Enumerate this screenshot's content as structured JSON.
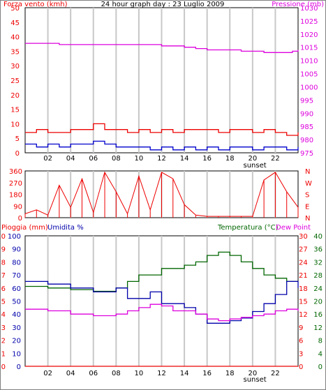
{
  "colors": {
    "wind": "#ee0000",
    "wind_avg": "#0000cc",
    "wind_green": "#008000",
    "pressure": "#dd00dd",
    "grid": "#c8c8c8",
    "temperature": "#006600",
    "dewpoint": "#dd00dd",
    "humidity": "#0000aa",
    "rain": "#ee0000"
  },
  "chart_data": [
    {
      "type": "line",
      "title": "24 hour graph day : 23 Luglio 2009",
      "left_label": "Forza vento (kmh)",
      "right_label": "Pressione (mb)",
      "x_ticks": [
        "02",
        "04",
        "06",
        "08",
        "10",
        "12",
        "14",
        "16",
        "18",
        "20",
        "22"
      ],
      "x_note": "sunset",
      "y_left_ticks": [
        0,
        5,
        10,
        15,
        20,
        25,
        30,
        35,
        40,
        45,
        50
      ],
      "y_right_ticks": [
        975,
        980,
        985,
        990,
        995,
        1000,
        1005,
        1010,
        1015,
        1020,
        1025,
        1030
      ],
      "ylim_left": [
        0,
        50
      ],
      "ylim_right": [
        975,
        1030
      ],
      "series": [
        {
          "role": "pressure",
          "axis": "right",
          "x": [
            0,
            2,
            3,
            4,
            6,
            8,
            10,
            12,
            14,
            15,
            16,
            18,
            19,
            20,
            21,
            22,
            23,
            23.5,
            24
          ],
          "values": [
            1016.5,
            1016.5,
            1016,
            1016,
            1016,
            1016,
            1016,
            1015.5,
            1015,
            1014.5,
            1014,
            1014,
            1013.5,
            1013.5,
            1013,
            1013,
            1013,
            1013.5,
            1014
          ]
        },
        {
          "role": "wind_avg",
          "axis": "left",
          "x": [
            0,
            1,
            2,
            3,
            4,
            5,
            6,
            7,
            8,
            9,
            10,
            11,
            12,
            13,
            14,
            15,
            16,
            17,
            18,
            19,
            20,
            21,
            22,
            23,
            24
          ],
          "values": [
            3,
            2,
            3,
            2,
            3,
            3,
            4,
            3,
            2,
            2,
            2,
            1,
            2,
            1,
            2,
            1,
            2,
            1,
            2,
            2,
            1,
            2,
            2,
            1,
            2
          ]
        },
        {
          "role": "wind_gust",
          "axis": "left",
          "x": [
            0,
            1,
            2,
            3,
            4,
            5,
            6,
            7,
            8,
            9,
            10,
            11,
            12,
            13,
            14,
            15,
            16,
            17,
            18,
            19,
            20,
            21,
            22,
            23,
            24
          ],
          "values": [
            7,
            8,
            7,
            7,
            8,
            8,
            10,
            8,
            8,
            7,
            8,
            7,
            8,
            7,
            8,
            8,
            8,
            7,
            8,
            8,
            7,
            8,
            7,
            6,
            7
          ]
        }
      ]
    },
    {
      "type": "scatter",
      "title": "",
      "y_left_ticks": [
        0,
        90,
        180,
        270,
        360
      ],
      "y_right_ticks": [
        "N",
        "E",
        "S",
        "W",
        "N"
      ],
      "ylim": [
        0,
        360
      ],
      "x_ticks": [],
      "series": [
        {
          "role": "wind_direction",
          "x": [
            0,
            1,
            2,
            3,
            4,
            5,
            6,
            7,
            8,
            9,
            10,
            11,
            12,
            13,
            14,
            15,
            16,
            17,
            18,
            19,
            20,
            21,
            22,
            23,
            24
          ],
          "values": [
            30,
            60,
            20,
            250,
            80,
            300,
            40,
            350,
            200,
            30,
            320,
            60,
            350,
            300,
            100,
            20,
            10,
            10,
            10,
            10,
            10,
            290,
            350,
            200,
            80
          ]
        }
      ]
    },
    {
      "type": "line",
      "title": "",
      "left_labels": [
        "Pioggia (mm)",
        "Umidita %"
      ],
      "right_labels": [
        "Temperatura (°C)",
        "Dew Point"
      ],
      "x_ticks": [
        "02",
        "04",
        "06",
        "08",
        "10",
        "12",
        "14",
        "16",
        "18",
        "20",
        "22"
      ],
      "x_note": "sunset",
      "y_left_outer_ticks": [
        0,
        1,
        2,
        3,
        4,
        5,
        6,
        7,
        8,
        9,
        10
      ],
      "y_left_inner_ticks": [
        0,
        10,
        20,
        30,
        40,
        50,
        60,
        70,
        80,
        90,
        100
      ],
      "y_mid_ticks": [
        0,
        3,
        6,
        9,
        12,
        15,
        18,
        21,
        24,
        27,
        30
      ],
      "y_right_ticks": [
        0,
        4,
        8,
        12,
        16,
        20,
        24,
        28,
        32,
        36,
        40
      ],
      "ylim_humidity": [
        0,
        100
      ],
      "ylim_temperature": [
        0,
        40
      ],
      "series": [
        {
          "role": "temperature",
          "axis": "right",
          "x": [
            0,
            2,
            4,
            6,
            7,
            8,
            9,
            10,
            12,
            14,
            15,
            16,
            17,
            18,
            19,
            20,
            21,
            22,
            23,
            24
          ],
          "values": [
            24.5,
            24,
            23.5,
            23,
            23,
            24,
            26,
            28,
            30,
            31,
            32,
            34,
            35,
            34,
            32,
            30,
            28,
            27,
            26,
            26
          ]
        },
        {
          "role": "humidity",
          "axis": "left",
          "x": [
            0,
            2,
            4,
            6,
            7,
            8,
            9,
            10,
            11,
            12,
            13,
            14,
            15,
            16,
            17,
            18,
            19,
            20,
            21,
            22,
            23,
            24
          ],
          "values": [
            65,
            63,
            60,
            57,
            57,
            60,
            52,
            52,
            57,
            48,
            48,
            45,
            40,
            33,
            33,
            35,
            37,
            42,
            48,
            55,
            65,
            60
          ]
        },
        {
          "role": "dewpoint",
          "axis": "right",
          "x": [
            0,
            2,
            4,
            6,
            8,
            9,
            10,
            11,
            12,
            13,
            14,
            15,
            16,
            17,
            18,
            19,
            20,
            21,
            22,
            23,
            24
          ],
          "values": [
            17.5,
            17,
            16,
            15.5,
            16,
            17,
            18,
            19,
            18.5,
            17,
            17,
            16,
            14.5,
            14,
            14.5,
            15,
            15.5,
            16,
            17,
            17.5,
            17
          ]
        },
        {
          "role": "rain",
          "axis": "left_outer",
          "x": [
            0,
            24
          ],
          "values": [
            0,
            0
          ]
        }
      ]
    }
  ]
}
